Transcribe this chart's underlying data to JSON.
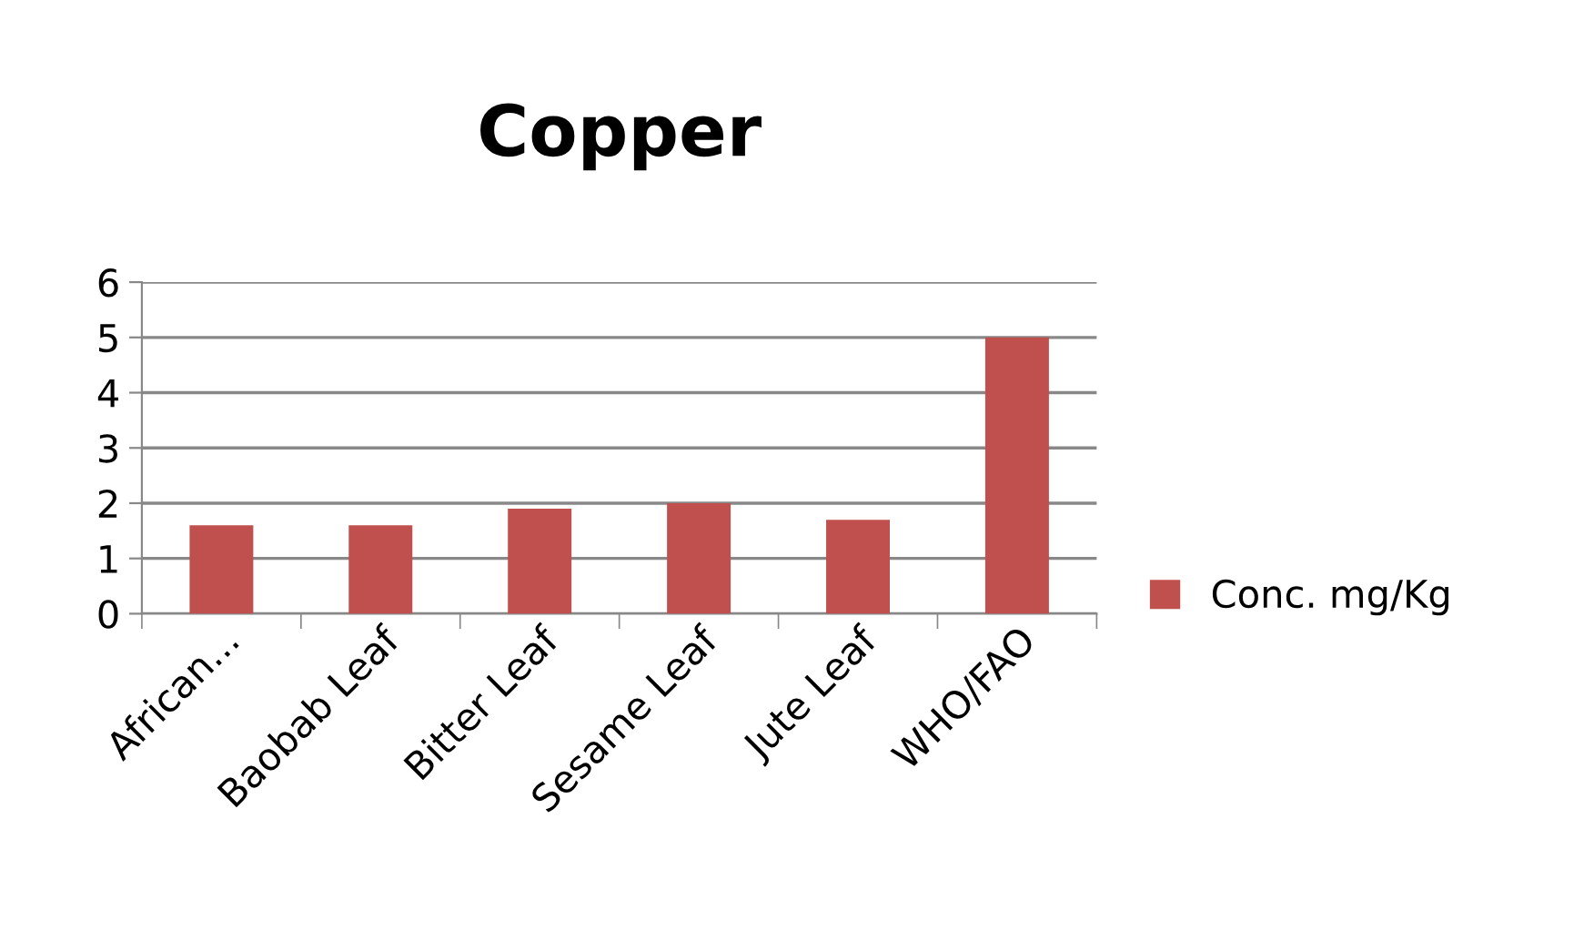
{
  "chart_data": {
    "type": "bar",
    "title": "Copper",
    "categories": [
      "African...",
      "Baobab Leaf",
      "Bitter Leaf",
      "Sesame Leaf",
      "Jute Leaf",
      "WHO/FAO"
    ],
    "series": [
      {
        "name": "Conc. mg/Kg",
        "color": "#c0504d",
        "values": [
          1.6,
          1.6,
          1.9,
          2.0,
          1.7,
          5.0
        ]
      }
    ],
    "ylim": [
      0,
      6
    ],
    "yticks": [
      0,
      1,
      2,
      3,
      4,
      5,
      6
    ],
    "grid": "y",
    "legend": "right"
  }
}
